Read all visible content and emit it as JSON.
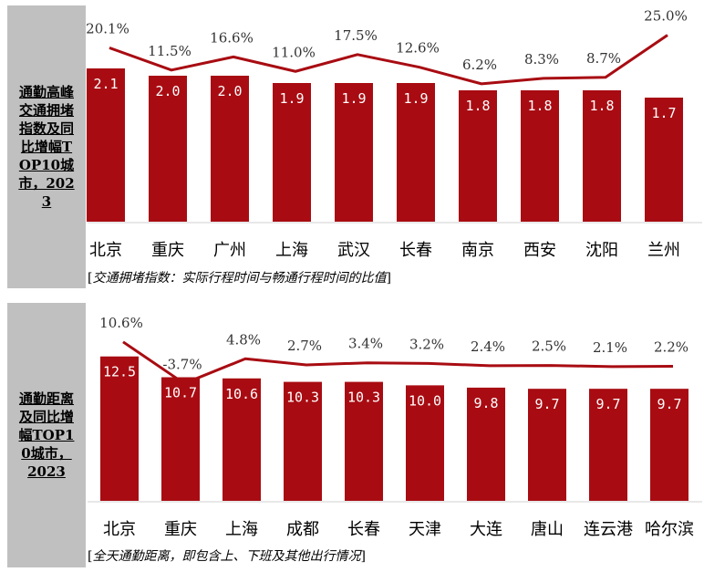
{
  "chart_data": [
    {
      "type": "bar",
      "side_title": "通勤高峰交通拥堵指数及同比增幅TOP10城市，2023",
      "categories": [
        "北京",
        "重庆",
        "广州",
        "上海",
        "武汉",
        "长春",
        "南京",
        "西安",
        "沈阳",
        "兰州"
      ],
      "series": [
        {
          "type": "bar",
          "values": [
            2.1,
            2.0,
            2.0,
            1.9,
            1.9,
            1.9,
            1.8,
            1.8,
            1.8,
            1.7
          ],
          "labels": [
            "2.1",
            "2.0",
            "2.0",
            "1.9",
            "1.9",
            "1.9",
            "1.8",
            "1.8",
            "1.8",
            "1.7"
          ]
        },
        {
          "type": "line",
          "values": [
            20.1,
            11.5,
            16.6,
            11.0,
            17.5,
            12.6,
            6.2,
            8.3,
            8.7,
            25.0
          ],
          "labels": [
            "20.1%",
            "11.5%",
            "16.6%",
            "11.0%",
            "17.5%",
            "12.6%",
            "6.2%",
            "8.3%",
            "8.7%",
            "25.0%"
          ]
        }
      ],
      "bar_ylim": [
        0,
        2.6
      ],
      "line_ylim": [
        -3,
        28
      ],
      "note": "交通拥堵指数：实际行程时间与畅通行程时间的比值",
      "colors": {
        "bar": "#a80c12",
        "line": "#a80c12"
      }
    },
    {
      "type": "bar",
      "side_title": "通勤距离及同比增幅TOP10城市，2023",
      "categories": [
        "北京",
        "重庆",
        "上海",
        "成都",
        "长春",
        "天津",
        "大连",
        "唐山",
        "连云港",
        "哈尔滨"
      ],
      "series": [
        {
          "type": "bar",
          "values": [
            12.5,
            10.7,
            10.6,
            10.3,
            10.3,
            10.0,
            9.8,
            9.7,
            9.7,
            9.7
          ],
          "labels": [
            "12.5",
            "10.7",
            "10.6",
            "10.3",
            "10.3",
            "10.0",
            "9.8",
            "9.7",
            "9.7",
            "9.7"
          ]
        },
        {
          "type": "line",
          "values": [
            10.6,
            -3.7,
            4.8,
            2.7,
            3.4,
            3.2,
            2.4,
            2.5,
            2.1,
            2.2
          ],
          "labels": [
            "10.6%",
            "-3.7%",
            "4.8%",
            "2.7%",
            "3.4%",
            "3.2%",
            "2.4%",
            "2.5%",
            "2.1%",
            "2.2%"
          ]
        }
      ],
      "bar_ylim": [
        0,
        15.4
      ],
      "line_ylim": [
        -8,
        14
      ],
      "note": "全天通勤距离，即包含上、下班及其他出行情况",
      "colors": {
        "bar": "#a80c12",
        "line": "#a80c12"
      }
    }
  ]
}
